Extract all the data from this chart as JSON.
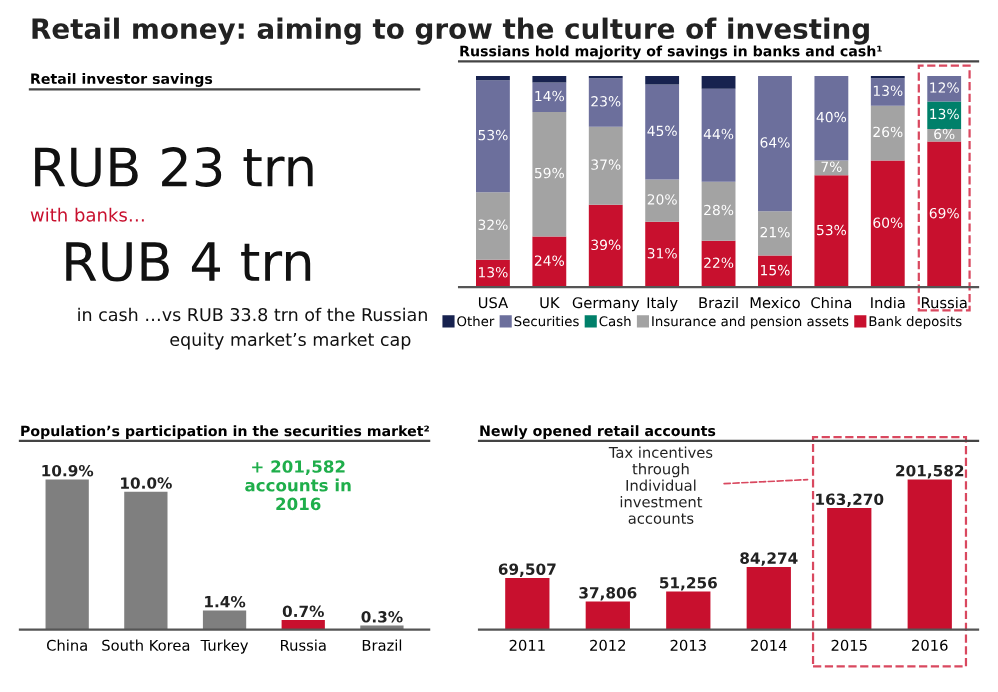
{
  "chart_data": [
    {
      "type": "other",
      "title": "Retail investor savings",
      "annotations": [
        "Retail money: aiming to grow the culture of investing",
        "RUB 23 trn",
        "with banks…",
        "RUB 4 trn",
        "in cash …vs RUB 33.8 trn of the Russian",
        "equity market’s market cap"
      ]
    },
    {
      "type": "bar",
      "title": "Russians hold majority of savings in banks and cash¹",
      "stacked": true,
      "legend": "bottom",
      "categories": [
        "USA",
        "UK",
        "Germany",
        "Italy",
        "Brazil",
        "Mexico",
        "China",
        "India",
        "Russia"
      ],
      "series": [
        {
          "name": "Bank deposits",
          "color": "#c8102e",
          "values": [
            13,
            24,
            39,
            31,
            22,
            15,
            53,
            60,
            69
          ],
          "value_labels": [
            "13%",
            "24%",
            "39%",
            "31%",
            "22%",
            "15%",
            "53%",
            "60%",
            "69%"
          ]
        },
        {
          "name": "Insurance and pension assets",
          "color": "#a3a3a3",
          "values": [
            32,
            59,
            37,
            20,
            28,
            21,
            7,
            26,
            6
          ],
          "value_labels": [
            "32%",
            "59%",
            "37%",
            "20%",
            "28%",
            "21%",
            "7%",
            "26%",
            "6%"
          ]
        },
        {
          "name": "Cash",
          "color": "#00806a",
          "values": [
            0,
            0,
            0,
            0,
            0,
            0,
            0,
            0,
            13
          ],
          "value_labels": [
            null,
            null,
            null,
            null,
            null,
            null,
            null,
            null,
            "13%"
          ]
        },
        {
          "name": "Securities",
          "color": "#6c6f9c",
          "values": [
            53,
            14,
            23,
            45,
            44,
            64,
            40,
            13,
            12
          ],
          "value_labels": [
            "53%",
            "14%",
            "23%",
            "45%",
            "44%",
            "64%",
            "40%",
            "13%",
            "12%"
          ]
        },
        {
          "name": "Other",
          "color": "#17224f",
          "values": [
            2,
            3,
            1,
            4,
            6,
            0,
            0,
            1,
            0
          ]
        }
      ]
    },
    {
      "type": "bar",
      "title": "Population’s participation in the securities market²",
      "categories": [
        "China",
        "South Korea",
        "Turkey",
        "Russia",
        "Brazil"
      ],
      "values": [
        10.9,
        10.0,
        1.4,
        0.7,
        0.3
      ],
      "colors": [
        "#7f7f7f",
        "#7f7f7f",
        "#7f7f7f",
        "#c8102e",
        "#7f7f7f"
      ],
      "value_labels": [
        "10.9%",
        "10.0%",
        "1.4%",
        "0.7%",
        "0.3%"
      ],
      "annotations": [
        "+ 201,582\naccounts in\n2016"
      ]
    },
    {
      "type": "bar",
      "title": "Newly opened retail accounts",
      "categories": [
        "2011",
        "2012",
        "2013",
        "2014",
        "2015",
        "2016"
      ],
      "values": [
        69507,
        37806,
        51256,
        84274,
        163270,
        201582
      ],
      "color": "#c8102e",
      "value_labels": [
        "69,507",
        "37,806",
        "51,256",
        "84,274",
        "163,270",
        "201,582"
      ],
      "annotations": [
        "Tax incentives\nthrough\nIndividual\ninvestment\naccounts"
      ]
    }
  ]
}
